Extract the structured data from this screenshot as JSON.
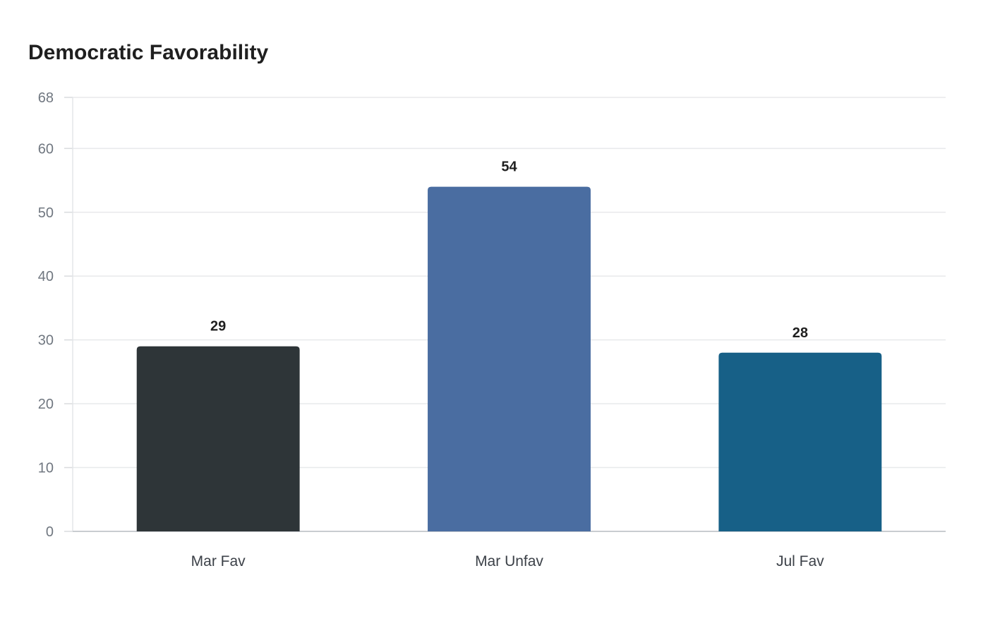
{
  "chart_data": {
    "type": "bar",
    "title": "Democratic Favorability",
    "xlabel": "",
    "ylabel": "",
    "categories": [
      "Mar Fav",
      "Mar Unfav",
      "Jul Fav"
    ],
    "values": [
      29,
      54,
      28
    ],
    "bar_colors": [
      "#2e3538",
      "#4a6da1",
      "#176087"
    ],
    "yticks": [
      0,
      10,
      20,
      30,
      40,
      50,
      60,
      68
    ],
    "ylim": [
      0,
      68
    ],
    "grid": true,
    "legend": "none"
  }
}
